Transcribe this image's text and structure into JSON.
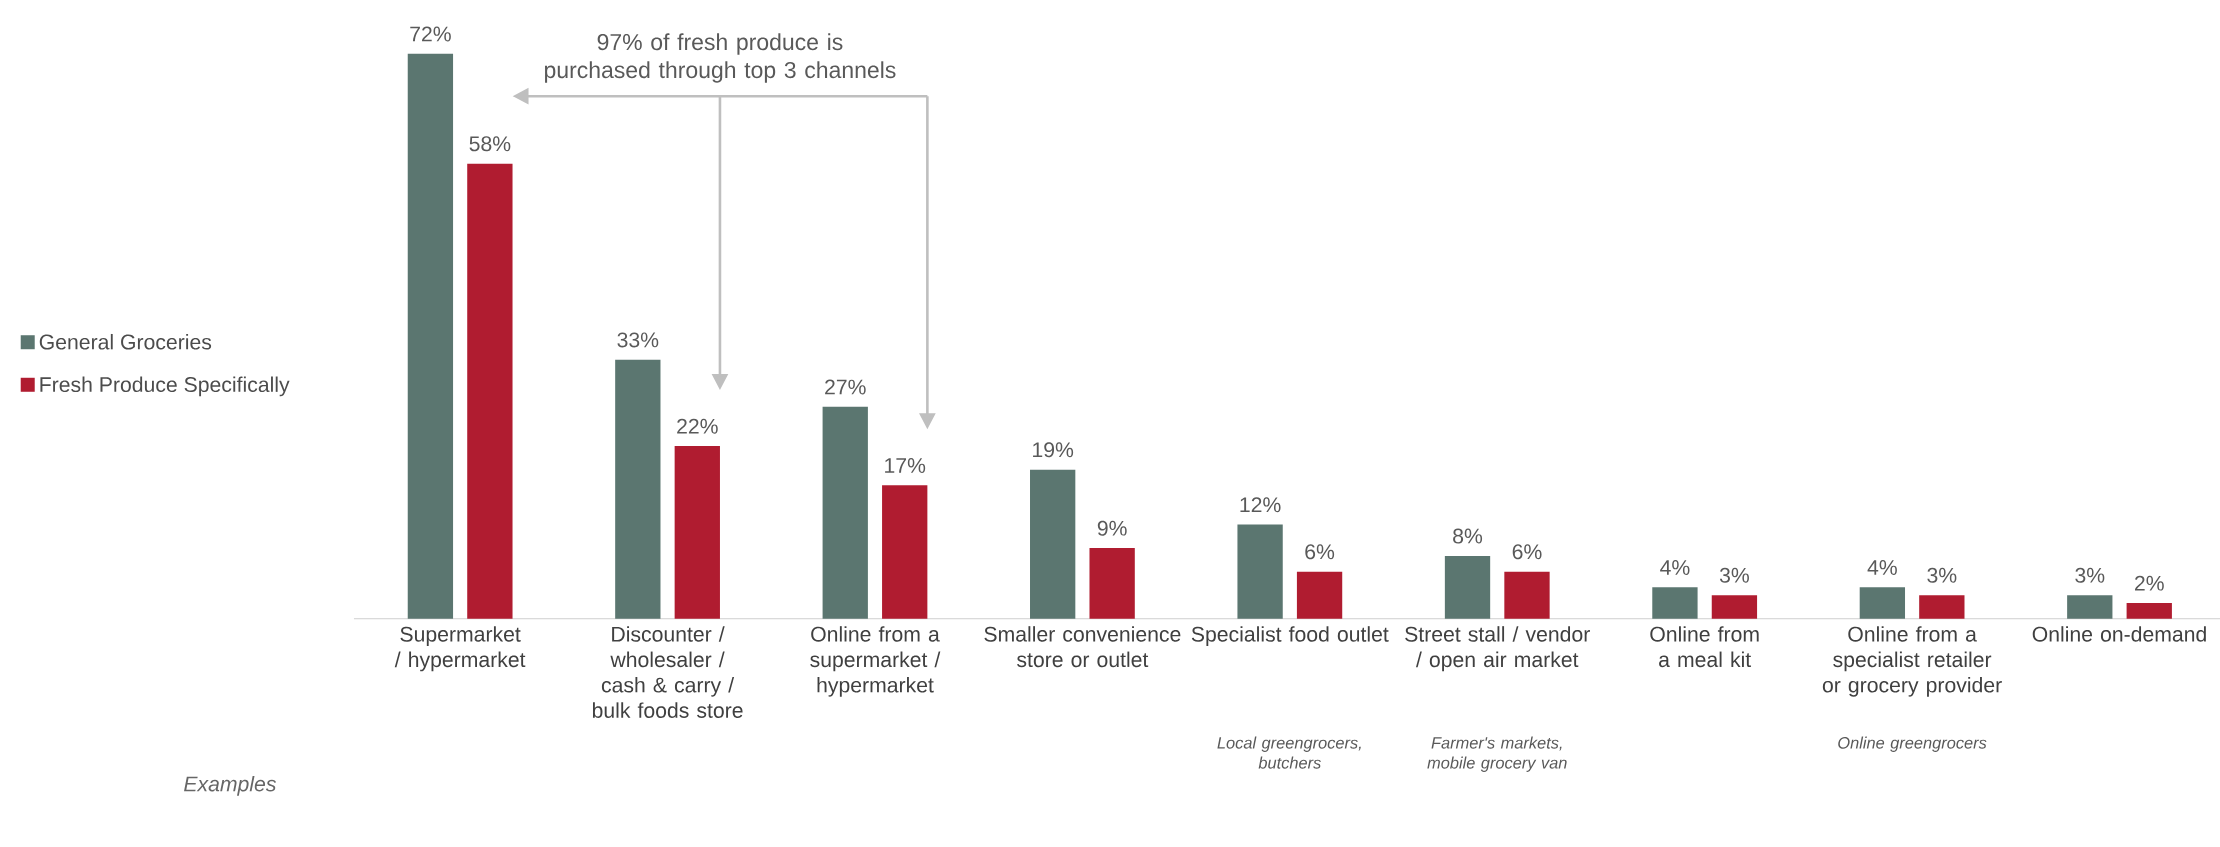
{
  "chart_data": {
    "type": "bar",
    "categories": [
      "Supermarket / hypermarket",
      "Discounter / wholesaler / cash & carry / bulk foods store",
      "Online from a supermarket / hypermarket",
      "Smaller convenience store or outlet",
      "Specialist food outlet",
      "Street stall / vendor / open air market",
      "Online from a meal kit",
      "Online from a specialist retailer or grocery provider",
      "Online on-demand"
    ],
    "series": [
      {
        "name": "General Groceries",
        "color": "#5b7670",
        "values": [
          72,
          33,
          27,
          19,
          12,
          8,
          4,
          4,
          3
        ],
        "value_labels": [
          "72%",
          "33%",
          "27%",
          "19%",
          "12%",
          "8%",
          "4%",
          "4%",
          "3%"
        ]
      },
      {
        "name": "Fresh Produce Specifically",
        "color": "#b01c30",
        "values": [
          58,
          22,
          17,
          9,
          6,
          6,
          3,
          3,
          2
        ],
        "value_labels": [
          "58%",
          "22%",
          "17%",
          "9%",
          "6%",
          "6%",
          "3%",
          "3%",
          "2%"
        ]
      }
    ],
    "legend": "left",
    "annotations": [
      "97% of fresh produce is purchased through top 3 channels",
      "Examples",
      "Local greengrocers, butchers",
      "Farmer's markets, mobile grocery van",
      "Online greengrocers"
    ]
  }
}
